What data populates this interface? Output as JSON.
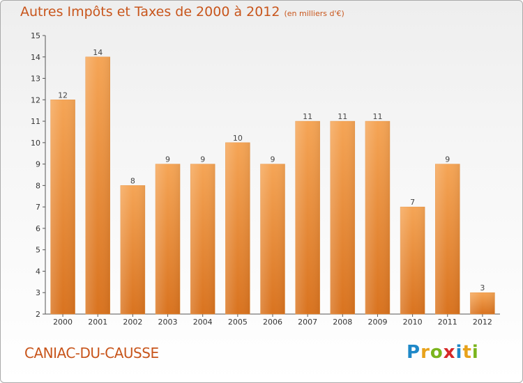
{
  "title": {
    "main": "Autres Impôts et Taxes de 2000 à 2012",
    "unit": "(en milliers d'€)"
  },
  "commune": "CANIAC-DU-CAUSSE",
  "logo": {
    "letters": [
      "P",
      "r",
      "o",
      "x",
      "i",
      "t",
      "i"
    ],
    "colors": [
      "#1e88c8",
      "#e8a21b",
      "#7ab51d",
      "#d62828",
      "#1e88c8",
      "#e8a21b",
      "#7ab51d"
    ]
  },
  "colors": {
    "title": "#c8551b",
    "bar_top": "#f5a556",
    "bar_bottom": "#d9731f"
  },
  "chart_data": {
    "type": "bar",
    "categories": [
      "2000",
      "2001",
      "2002",
      "2003",
      "2004",
      "2005",
      "2006",
      "2007",
      "2008",
      "2009",
      "2010",
      "2011",
      "2012"
    ],
    "values": [
      12,
      14,
      8,
      9,
      9,
      10,
      9,
      11,
      11,
      11,
      7,
      9,
      3
    ],
    "ylim": [
      2,
      15
    ],
    "yticks": [
      2,
      3,
      4,
      5,
      6,
      7,
      8,
      9,
      10,
      11,
      12,
      13,
      14,
      15
    ],
    "grid": false,
    "legend": "none"
  }
}
